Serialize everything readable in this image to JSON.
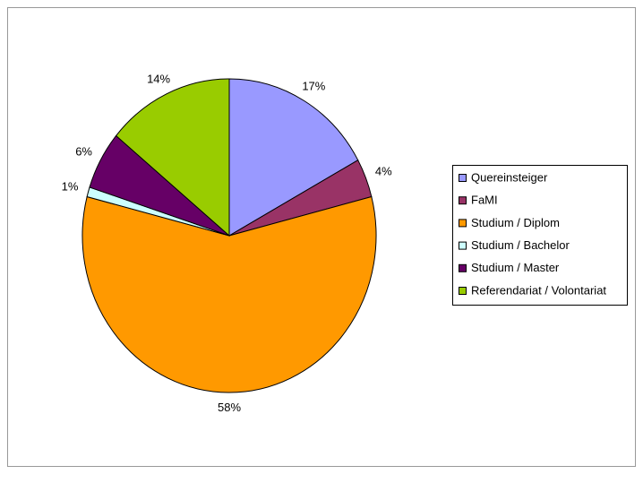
{
  "chart_data": {
    "type": "pie",
    "categories": [
      "Quereinsteiger",
      "FaMI",
      "Studium / Diplom",
      "Studium / Bachelor",
      "Studium / Master",
      "Referendariat / Volontariat"
    ],
    "values": [
      17,
      4,
      58,
      1,
      6,
      14
    ],
    "value_labels": [
      "17%",
      "4%",
      "58%",
      "1%",
      "6%",
      "14%"
    ],
    "colors": [
      "#9999ff",
      "#993366",
      "#ff9900",
      "#ccffff",
      "#660066",
      "#99cc00"
    ],
    "legend": "right"
  }
}
